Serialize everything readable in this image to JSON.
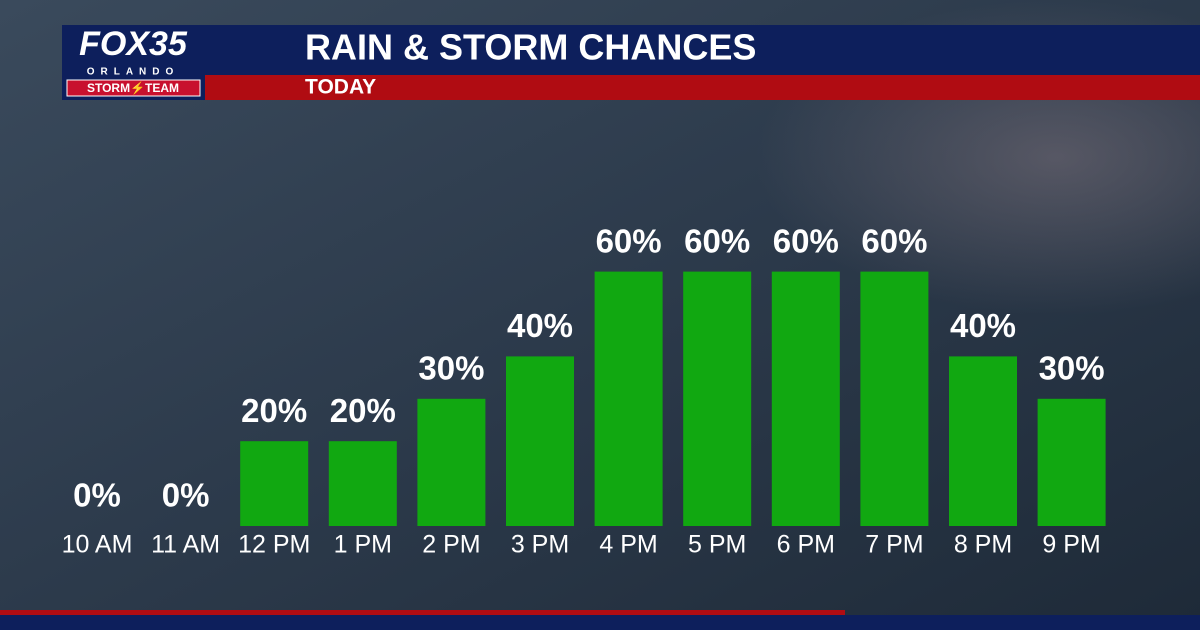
{
  "logo": {
    "brand": "FOX35",
    "city": "ORLANDO",
    "team": "STORM⚡TEAM"
  },
  "chart_data": {
    "type": "bar",
    "title": "RAIN & STORM CHANCES",
    "subtitle": "TODAY",
    "categories": [
      "10 AM",
      "11 AM",
      "12 PM",
      "1 PM",
      "2 PM",
      "3 PM",
      "4 PM",
      "5 PM",
      "6 PM",
      "7 PM",
      "8 PM",
      "9 PM"
    ],
    "values": [
      0,
      0,
      20,
      20,
      30,
      40,
      60,
      60,
      60,
      60,
      40,
      30
    ],
    "value_labels": [
      "0%",
      "0%",
      "20%",
      "20%",
      "30%",
      "40%",
      "60%",
      "60%",
      "60%",
      "60%",
      "40%",
      "30%"
    ],
    "color": "#11a811"
  }
}
